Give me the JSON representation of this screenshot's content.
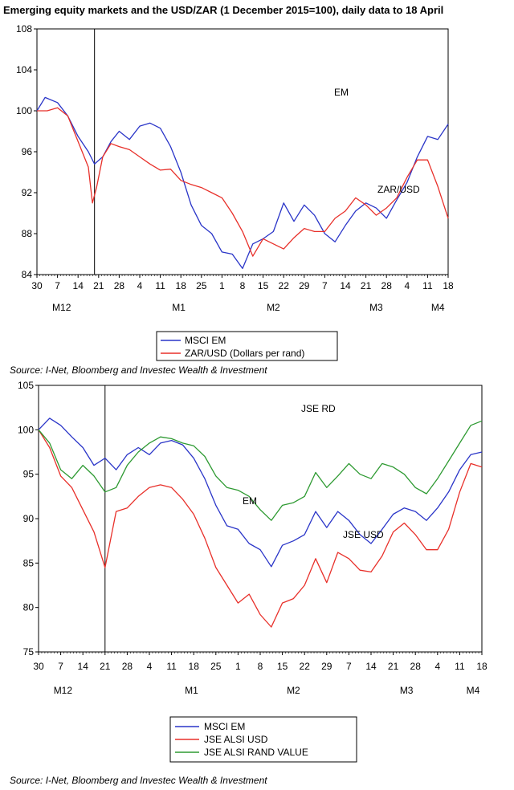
{
  "title": "Emerging equity markets and the USD/ZAR (1 December 2015=100), daily data to 18 April",
  "source_text": "Source: I-Net, Bloomberg and Investec Wealth & Investment",
  "colors": {
    "blue": "#2a35c8",
    "red": "#e8302a",
    "green": "#2e9a32",
    "axis": "#000000"
  },
  "chart_data": [
    {
      "type": "line",
      "title": "Emerging equity markets and the USD/ZAR (1 December 2015=100), daily data to 18 April",
      "x_tick_labels": [
        "30",
        "7",
        "14",
        "21",
        "28",
        "4",
        "11",
        "18",
        "25",
        "1",
        "8",
        "15",
        "22",
        "29",
        "7",
        "14",
        "21",
        "28",
        "4",
        "11",
        "18"
      ],
      "month_labels": [
        "M12",
        "M1",
        "M2",
        "M3",
        "M4"
      ],
      "ylim": [
        84,
        108
      ],
      "yticks": [
        84,
        88,
        92,
        96,
        100,
        104,
        108
      ],
      "vline_x": 2.8,
      "annotations": [
        "EM",
        "ZAR/USD"
      ],
      "legend_placement": "below",
      "series": [
        {
          "name": "MSCI EM",
          "color": "blue",
          "x": [
            0,
            0.4,
            1,
            1.5,
            2,
            2.5,
            2.8,
            3.2,
            3.6,
            4,
            4.5,
            5,
            5.5,
            6,
            6.5,
            7,
            7.5,
            8,
            8.5,
            9,
            9.5,
            10,
            10.5,
            11,
            11.5,
            12,
            12.5,
            13,
            13.5,
            14,
            14.5,
            15,
            15.5,
            16,
            16.5,
            17,
            17.5,
            18,
            18.5,
            19,
            19.5,
            20
          ],
          "values": [
            100,
            101.3,
            100.8,
            99.5,
            97.5,
            96,
            94.8,
            95.5,
            97,
            98,
            97.2,
            98.5,
            98.8,
            98.3,
            96.5,
            94,
            90.8,
            88.8,
            88,
            86.2,
            86,
            84.6,
            87,
            87.5,
            88.2,
            91,
            89.2,
            90.8,
            89.8,
            88,
            87.2,
            88.8,
            90.2,
            91,
            90.5,
            89.5,
            91.3,
            93,
            95.5,
            97.5,
            97.2,
            98.7
          ]
        },
        {
          "name": "ZAR/USD (Dollars per rand)",
          "color": "red",
          "x": [
            0,
            0.5,
            1,
            1.5,
            2,
            2.5,
            2.7,
            2.9,
            3.2,
            3.6,
            4,
            4.5,
            5,
            5.5,
            6,
            6.5,
            7,
            7.5,
            8,
            8.5,
            9,
            9.5,
            10,
            10.5,
            11,
            11.5,
            12,
            12.5,
            13,
            13.5,
            14,
            14.5,
            15,
            15.5,
            16,
            16.5,
            17,
            17.5,
            18,
            18.5,
            19,
            19.5,
            20
          ],
          "values": [
            100,
            100,
            100.3,
            99.5,
            97,
            94.5,
            91,
            92.5,
            95.5,
            96.8,
            96.5,
            96.2,
            95.5,
            94.8,
            94.2,
            94.3,
            93.2,
            92.8,
            92.5,
            92,
            91.5,
            90,
            88.2,
            85.8,
            87.5,
            87,
            86.5,
            87.6,
            88.5,
            88.2,
            88.2,
            89.5,
            90.2,
            91.5,
            90.8,
            89.8,
            90.5,
            91.5,
            93.5,
            95.2,
            95.2,
            92.6,
            89.5
          ]
        }
      ]
    },
    {
      "type": "line",
      "x_tick_labels": [
        "30",
        "7",
        "14",
        "21",
        "28",
        "4",
        "11",
        "18",
        "25",
        "1",
        "8",
        "15",
        "22",
        "29",
        "7",
        "14",
        "21",
        "28",
        "4",
        "11",
        "18"
      ],
      "month_labels": [
        "M12",
        "M1",
        "M2",
        "M3",
        "M4"
      ],
      "ylim": [
        75,
        105
      ],
      "yticks": [
        75,
        80,
        85,
        90,
        95,
        100,
        105
      ],
      "vline_x": 3,
      "annotations": [
        "JSE RD",
        "EM",
        "JSE USD"
      ],
      "legend_placement": "below",
      "series": [
        {
          "name": "MSCI EM",
          "color": "blue",
          "x": [
            0,
            0.5,
            1,
            1.5,
            2,
            2.5,
            3,
            3.5,
            4,
            4.5,
            5,
            5.5,
            6,
            6.5,
            7,
            7.5,
            8,
            8.5,
            9,
            9.5,
            10,
            10.5,
            11,
            11.5,
            12,
            12.5,
            13,
            13.5,
            14,
            14.5,
            15,
            15.5,
            16,
            16.5,
            17,
            17.5,
            18,
            18.5,
            19,
            19.5,
            20
          ],
          "values": [
            100,
            101.3,
            100.5,
            99.2,
            98,
            96,
            96.8,
            95.5,
            97.2,
            98,
            97.2,
            98.5,
            98.8,
            98.3,
            96.8,
            94.5,
            91.5,
            89.2,
            88.8,
            87.2,
            86.5,
            84.6,
            87,
            87.5,
            88.2,
            90.8,
            89,
            90.8,
            89.8,
            88.2,
            87.2,
            88.8,
            90.5,
            91.2,
            90.8,
            89.8,
            91.2,
            93,
            95.5,
            97.2,
            97.5
          ]
        },
        {
          "name": "JSE ALSI USD",
          "color": "red",
          "x": [
            0,
            0.5,
            1,
            1.5,
            2,
            2.5,
            3,
            3.5,
            4,
            4.5,
            5,
            5.5,
            6,
            6.5,
            7,
            7.5,
            8,
            8.5,
            9,
            9.5,
            10,
            10.5,
            11,
            11.5,
            12,
            12.5,
            13,
            13.5,
            14,
            14.5,
            15,
            15.5,
            16,
            16.5,
            17,
            17.5,
            18,
            18.5,
            19,
            19.5,
            20
          ],
          "values": [
            100,
            98,
            94.8,
            93.5,
            91,
            88.5,
            84.5,
            90.8,
            91.2,
            92.5,
            93.5,
            93.8,
            93.5,
            92.2,
            90.5,
            87.8,
            84.5,
            82.5,
            80.5,
            81.5,
            79.2,
            77.8,
            80.5,
            81,
            82.5,
            85.5,
            82.8,
            86.2,
            85.5,
            84.2,
            84,
            85.8,
            88.5,
            89.5,
            88.2,
            86.5,
            86.5,
            88.8,
            93,
            96.2,
            95.8
          ]
        },
        {
          "name": "JSE ALSI RAND VALUE",
          "color": "green",
          "x": [
            0,
            0.5,
            1,
            1.5,
            2,
            2.5,
            3,
            3.5,
            4,
            4.5,
            5,
            5.5,
            6,
            6.5,
            7,
            7.5,
            8,
            8.5,
            9,
            9.5,
            10,
            10.5,
            11,
            11.5,
            12,
            12.5,
            13,
            13.5,
            14,
            14.5,
            15,
            15.5,
            16,
            16.5,
            17,
            17.5,
            18,
            18.5,
            19,
            19.5,
            20
          ],
          "values": [
            100,
            98.5,
            95.5,
            94.5,
            96,
            94.8,
            93,
            93.5,
            96,
            97.5,
            98.5,
            99.2,
            99,
            98.5,
            98.2,
            97,
            94.8,
            93.5,
            93.2,
            92.5,
            91,
            89.8,
            91.5,
            91.8,
            92.5,
            95.2,
            93.5,
            94.8,
            96.2,
            95,
            94.5,
            96.2,
            95.8,
            95,
            93.5,
            92.8,
            94.5,
            96.5,
            98.5,
            100.5,
            101
          ]
        }
      ]
    }
  ],
  "legends": [
    {
      "items": [
        {
          "label": "MSCI EM",
          "color": "blue"
        },
        {
          "label": "ZAR/USD (Dollars per rand)",
          "color": "red"
        }
      ]
    },
    {
      "items": [
        {
          "label": "MSCI EM",
          "color": "blue"
        },
        {
          "label": "JSE ALSI USD",
          "color": "red"
        },
        {
          "label": "JSE ALSI RAND VALUE",
          "color": "green"
        }
      ]
    }
  ]
}
